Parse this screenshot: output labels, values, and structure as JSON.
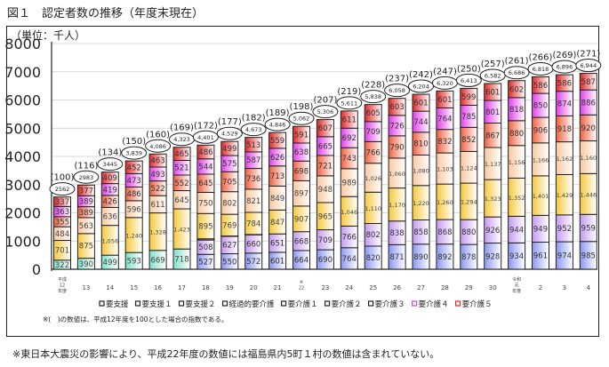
{
  "title": "図１　認定者数の推移（年度末現在）",
  "unit_label": "（単位：千人）",
  "footnote": "※東日本大震災の影響により、平成22年度の数値には福島県内5町１村の数値は含まれていない。",
  "chart_data": {
    "type": "bar",
    "stacked": true,
    "title": "図１　認定者数の推移（年度末現在）",
    "ylabel": "（単位：千人）",
    "ylim": [
      0,
      8000
    ],
    "yticks": [
      "0",
      "1000",
      "2000",
      "3000",
      "4000",
      "5000",
      "6000",
      "7000",
      "8000"
    ],
    "grid": true,
    "legend_position": "bottom",
    "categories": [
      [
        "平成",
        "12",
        "年度"
      ],
      [
        "13"
      ],
      [
        "14"
      ],
      [
        "15"
      ],
      [
        "16"
      ],
      [
        "17"
      ],
      [
        "18"
      ],
      [
        "19"
      ],
      [
        "20"
      ],
      [
        "21"
      ],
      [
        "※",
        "22"
      ],
      [
        "23"
      ],
      [
        "24"
      ],
      [
        "25"
      ],
      [
        "26"
      ],
      [
        "27"
      ],
      [
        "28"
      ],
      [
        "29"
      ],
      [
        "30"
      ],
      [
        "令和",
        "元",
        "年度"
      ],
      [
        "2"
      ],
      [
        "3"
      ],
      [
        "4"
      ]
    ],
    "series": [
      {
        "name": "要支援",
        "color": "#7fe0c8",
        "values": [
          322,
          390,
          499,
          593,
          669,
          718,
          null,
          null,
          null,
          null,
          null,
          null,
          null,
          null,
          null,
          null,
          null,
          null,
          null,
          null,
          null,
          null,
          null
        ]
      },
      {
        "name": "要支援１",
        "color": "#8c96f0",
        "values": [
          null,
          null,
          null,
          null,
          null,
          null,
          527,
          550,
          572,
          601,
          664,
          690,
          764,
          820,
          871,
          890,
          892,
          878,
          928,
          934,
          961,
          974,
          985
        ]
      },
      {
        "name": "要支援２",
        "color": "#c49af0",
        "values": [
          null,
          null,
          null,
          null,
          null,
          null,
          508,
          627,
          660,
          651,
          668,
          709,
          766,
          802,
          838,
          858,
          868,
          880,
          926,
          944,
          949,
          952,
          959
        ]
      },
      {
        "name": "経過的要介護",
        "color": "#555577",
        "values": [
          null,
          null,
          null,
          null,
          null,
          null,
          45,
          2,
          0,
          null,
          null,
          null,
          null,
          null,
          null,
          null,
          null,
          null,
          null,
          null,
          null,
          null,
          null
        ]
      },
      {
        "name": "要介護１",
        "color": "#f5c83a",
        "values": [
          701,
          875,
          1056,
          1240,
          1328,
          1423,
          895,
          769,
          784,
          847,
          907,
          965,
          1046,
          1110,
          1170,
          1220,
          1260,
          1294,
          1323,
          1352,
          1401,
          1429,
          1446
        ]
      },
      {
        "name": "要介護２",
        "color": "#f8c8a0",
        "values": [
          484,
          563,
          636,
          596,
          611,
          645,
          750,
          802,
          821,
          849,
          897,
          948,
          989,
          1026,
          1060,
          1080,
          1103,
          1124,
          1137,
          1156,
          1166,
          1162,
          1160
        ]
      },
      {
        "name": "要介護３",
        "color": "#ee6040",
        "values": [
          355,
          389,
          426,
          486,
          522,
          552,
          645,
          705,
          736,
          713,
          698,
          721,
          743,
          766,
          790,
          810,
          832,
          852,
          867,
          880,
          906,
          918,
          920
        ]
      },
      {
        "name": "要介護４",
        "color": "#e040e8",
        "values": [
          363,
          389,
          419,
          473,
          493,
          521,
          544,
          575,
          587,
          626,
          638,
          665,
          692,
          709,
          726,
          744,
          764,
          785,
          801,
          818,
          850,
          874,
          886
        ]
      },
      {
        "name": "要介護５",
        "color": "#e02828",
        "values": [
          337,
          377,
          409,
          452,
          463,
          465,
          486,
          499,
          513,
          559,
          591,
          607,
          611,
          605,
          603,
          601,
          601,
          599,
          601,
          602,
          586,
          586,
          587
        ]
      }
    ],
    "totals": [
      "2562",
      "2983",
      "3445",
      "3,839",
      "4,086",
      "4,323",
      "4,401",
      "4,529",
      "4,673",
      "4,846",
      "5,062",
      "5,306",
      "5,611",
      "5,838",
      "6,058",
      "6,204",
      "6,320",
      "6,413",
      "6,582",
      "6,686",
      "6,818",
      "6,896",
      "6,944"
    ],
    "index": [
      "(100)",
      "(116)",
      "(134)",
      "(150)",
      "(160)",
      "(169)",
      "(172)",
      "(177)",
      "(182)",
      "(189)",
      "(198)",
      "(207)",
      "(219)",
      "(228)",
      "(237)",
      "(242)",
      "(247)",
      "(250)",
      "(257)",
      "(261)",
      "(266)",
      "(269)",
      "(271)"
    ],
    "annotation": "※(　)の数値は、平成12年度を100とした場合の指数である。"
  }
}
